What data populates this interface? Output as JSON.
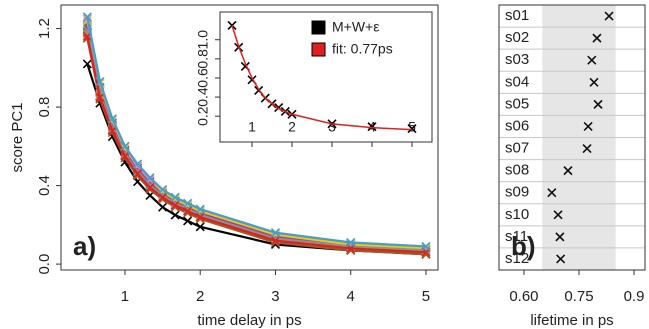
{
  "chart_data": [
    {
      "type": "line",
      "xlabel": "time delay in ps",
      "ylabel": "score PC1",
      "panel_label": "a)",
      "x": [
        0.5,
        0.667,
        0.833,
        1,
        1.167,
        1.333,
        1.5,
        1.667,
        1.833,
        2,
        3,
        4,
        5
      ],
      "xlim": [
        0.15,
        5.16
      ],
      "ylim": [
        -0.03,
        1.32
      ],
      "xticks": [
        1,
        2,
        3,
        4,
        5
      ],
      "yticks": [
        {
          "value": 0,
          "label": "0.0"
        },
        0.4,
        0.8,
        {
          "value": 1.2,
          "label": "1.2"
        }
      ],
      "series": [
        {
          "color": "#000000",
          "values": [
            1.02,
            0.82,
            0.65,
            0.52,
            0.42,
            0.35,
            0.29,
            0.25,
            0.22,
            0.19,
            0.1,
            0.07,
            0.05
          ]
        },
        {
          "color": "#e02020",
          "values": [
            1.18,
            0.88,
            0.7,
            0.57,
            0.48,
            0.41,
            0.36,
            0.32,
            0.29,
            0.26,
            0.14,
            0.1,
            0.07
          ]
        },
        {
          "color": "#1f8fd0",
          "values": [
            1.22,
            0.9,
            0.72,
            0.58,
            0.49,
            0.42,
            0.37,
            0.33,
            0.3,
            0.27,
            0.15,
            0.1,
            0.08
          ]
        },
        {
          "color": "#22aa44",
          "values": [
            1.2,
            0.89,
            0.71,
            0.58,
            0.48,
            0.41,
            0.36,
            0.32,
            0.29,
            0.26,
            0.14,
            0.1,
            0.07
          ]
        },
        {
          "color": "#a040b0",
          "values": [
            1.21,
            0.9,
            0.71,
            0.58,
            0.49,
            0.42,
            0.36,
            0.32,
            0.29,
            0.26,
            0.14,
            0.1,
            0.08
          ]
        },
        {
          "color": "#f08020",
          "values": [
            1.17,
            0.86,
            0.68,
            0.55,
            0.46,
            0.39,
            0.34,
            0.3,
            0.27,
            0.24,
            0.12,
            0.08,
            0.06
          ]
        },
        {
          "color": "#e8d000",
          "values": [
            1.24,
            0.92,
            0.73,
            0.59,
            0.5,
            0.43,
            0.37,
            0.33,
            0.3,
            0.27,
            0.15,
            0.1,
            0.08
          ]
        },
        {
          "color": "#a05a20",
          "values": [
            1.15,
            0.84,
            0.67,
            0.54,
            0.45,
            0.38,
            0.33,
            0.29,
            0.26,
            0.23,
            0.11,
            0.07,
            0.05
          ]
        },
        {
          "color": "#f080c0",
          "values": [
            1.25,
            0.93,
            0.74,
            0.6,
            0.5,
            0.43,
            0.38,
            0.34,
            0.31,
            0.28,
            0.16,
            0.11,
            0.09
          ]
        },
        {
          "color": "#909090",
          "values": [
            1.19,
            0.87,
            0.69,
            0.56,
            0.47,
            0.4,
            0.35,
            0.31,
            0.28,
            0.25,
            0.13,
            0.09,
            0.07
          ]
        },
        {
          "color": "#e02020",
          "values": [
            1.16,
            0.85,
            0.68,
            0.55,
            0.46,
            0.39,
            0.34,
            0.3,
            0.27,
            0.24,
            0.12,
            0.08,
            0.06
          ]
        },
        {
          "color": "#40a0d0",
          "values": [
            1.26,
            0.93,
            0.74,
            0.6,
            0.51,
            0.44,
            0.38,
            0.34,
            0.31,
            0.28,
            0.16,
            0.11,
            0.09
          ]
        }
      ]
    },
    {
      "type": "line",
      "x": [
        0.5,
        0.667,
        0.833,
        1,
        1.167,
        1.333,
        1.5,
        1.667,
        1.833,
        2,
        3,
        4,
        5
      ],
      "xlim": [
        0.2,
        5.5
      ],
      "ylim": [
        -0.07,
        1.29
      ],
      "xticks": [
        1,
        2,
        3,
        4,
        5
      ],
      "yticks": [
        0.2,
        0.4,
        0.6,
        0.8,
        {
          "value": 1,
          "label": "1.0"
        }
      ],
      "series": [
        {
          "name": "M+W+ε",
          "color": "#000000",
          "marker": "x",
          "values": [
            1.15,
            0.92,
            0.72,
            0.58,
            0.47,
            0.39,
            0.33,
            0.29,
            0.25,
            0.22,
            0.12,
            0.09,
            0.07
          ]
        },
        {
          "name": "fit: 0.77ps",
          "color": "#e02020",
          "values": [
            1.15,
            0.93,
            0.75,
            0.6,
            0.48,
            0.39,
            0.33,
            0.28,
            0.25,
            0.22,
            0.12,
            0.08,
            0.06
          ]
        }
      ]
    },
    {
      "type": "dot",
      "xlabel": "lifetime in ps",
      "panel_label": "b)",
      "categories": [
        "s01",
        "s02",
        "s03",
        "s04",
        "s05",
        "s06",
        "s07",
        "s08",
        "s09",
        "s10",
        "s11",
        "s12"
      ],
      "label_colors": [
        "#000000",
        "#e02020",
        "#1f8fd0",
        "#22aa44",
        "#a040b0",
        "#f08020",
        "#e8d000",
        "#a05a20",
        "#f080c0",
        "#909090",
        "#e02020",
        "#40a0d0"
      ],
      "values": [
        0.832,
        0.799,
        0.785,
        0.791,
        0.802,
        0.775,
        0.772,
        0.72,
        0.676,
        0.693,
        0.698,
        0.7
      ],
      "xlim": [
        0.532,
        0.93
      ],
      "shade": [
        0.65,
        0.85
      ],
      "xticks": [
        {
          "value": 0.6,
          "label": "0.60"
        },
        0.75,
        0.9
      ],
      "grid": true
    }
  ]
}
